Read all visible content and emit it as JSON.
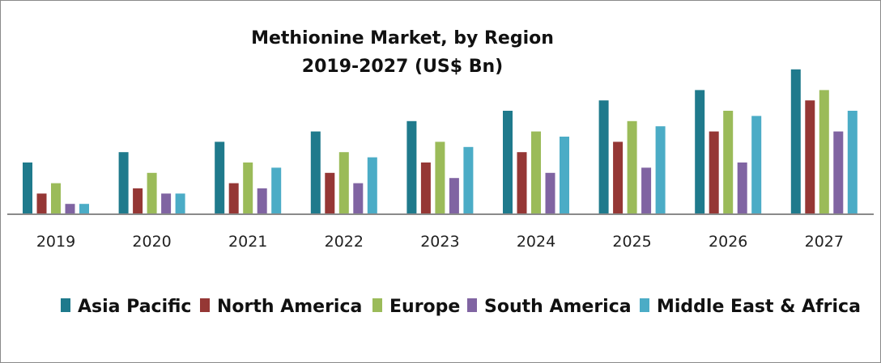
{
  "chart_data": {
    "type": "bar",
    "title": [
      "Methionine Market,  by Region",
      "2019-2027 (US$ Bn)"
    ],
    "xlabel": "",
    "ylabel": "",
    "categories": [
      "2019",
      "2020",
      "2021",
      "2022",
      "2023",
      "2024",
      "2025",
      "2026",
      "2027"
    ],
    "y_axis_shown": false,
    "grid": false,
    "legend_position": "bottom",
    "value_note_units": "relative (no y-axis printed)",
    "series": [
      {
        "name": "Asia Pacific",
        "color": "#1f7a8c",
        "values": [
          5,
          6,
          7,
          8,
          9,
          10,
          11,
          12,
          14
        ]
      },
      {
        "name": "North America",
        "color": "#953735",
        "values": [
          2,
          2.5,
          3,
          4,
          5,
          6,
          7,
          8,
          11
        ]
      },
      {
        "name": "Europe",
        "color": "#9bbb59",
        "values": [
          3,
          4,
          5,
          6,
          7,
          8,
          9,
          10,
          12
        ]
      },
      {
        "name": "South America",
        "color": "#8064a2",
        "values": [
          1,
          2,
          2.5,
          3,
          3.5,
          4,
          4.5,
          5,
          8
        ]
      },
      {
        "name": "Middle East & Africa",
        "color": "#4bacc6",
        "values": [
          1,
          2,
          4.5,
          5.5,
          6.5,
          7.5,
          8.5,
          9.5,
          10
        ]
      }
    ]
  }
}
